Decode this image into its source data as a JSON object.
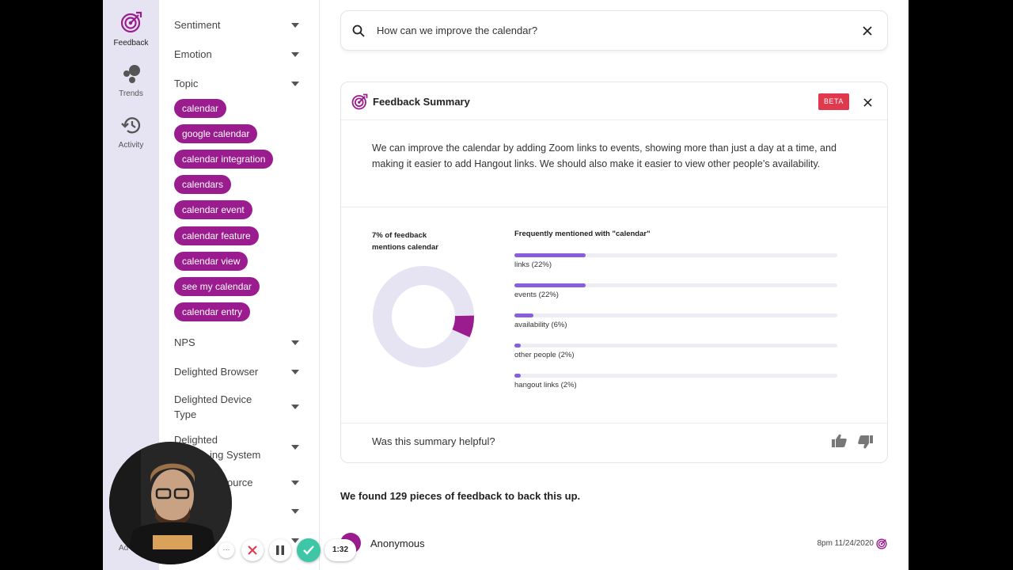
{
  "nav": {
    "items": [
      {
        "label": "Feedback",
        "icon": "target-icon"
      },
      {
        "label": "Trends",
        "icon": "bubbles-icon"
      },
      {
        "label": "Activity",
        "icon": "history-icon"
      }
    ],
    "bottom_label": "Ad"
  },
  "filters": {
    "sentiment": "Sentiment",
    "emotion": "Emotion",
    "topic": "Topic",
    "topic_chips": [
      "calendar",
      "google calendar",
      "calendar integration",
      "calendars",
      "calendar event",
      "calendar feature",
      "calendar view",
      "see my calendar",
      "calendar entry"
    ],
    "nps": "NPS",
    "delighted_browser": "Delighted Browser",
    "delighted_device_type": "Delighted Device Type",
    "delighted_os_part1": "Delighted",
    "delighted_os_part2": "ing System",
    "source_partial": "ource"
  },
  "search": {
    "query": "How can we improve the calendar?"
  },
  "summary_card": {
    "title": "Feedback Summary",
    "badge": "BETA",
    "text": "We can improve the calendar by adding Zoom links to events, showing more than just a day at a time, and making it easier to add Hangout links. We should also make it easier to view other people’s availability.",
    "mentions_label": "7% of feedback mentions calendar",
    "mentions_fraction": 0.07,
    "freq_title": "Frequently mentioned with \"calendar\"",
    "freq_items": [
      {
        "label": "links (22%)",
        "value": 0.22
      },
      {
        "label": "events (22%)",
        "value": 0.22
      },
      {
        "label": "availability (6%)",
        "value": 0.06
      },
      {
        "label": "other people (2%)",
        "value": 0.02
      },
      {
        "label": "hangout links (2%)",
        "value": 0.02
      }
    ],
    "helpful_prompt": "Was this summary helpful?"
  },
  "results": {
    "found_text": "We found 129 pieces of feedback to back this up.",
    "first_item": {
      "author": "Anonymous",
      "date": "8pm 11/24/2020"
    }
  },
  "recorder": {
    "timer": "1:32",
    "more": "···"
  },
  "colors": {
    "brand_purple": "#9b1c8e",
    "bar_purple": "#8a5ddb",
    "beta_red": "#e0394d",
    "rail_bg": "#e6e3f2",
    "donut_track": "#e6e3f2",
    "confirm_green": "#3ec7a6"
  }
}
